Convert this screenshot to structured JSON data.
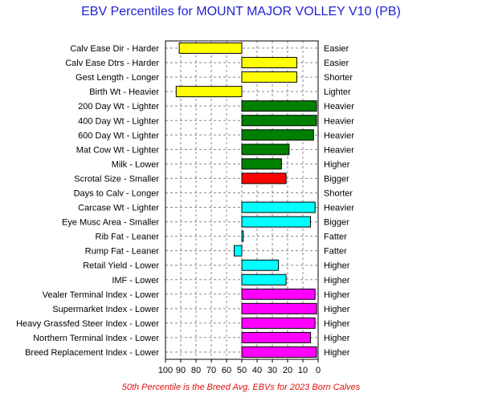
{
  "chart_data": {
    "type": "bar",
    "orientation": "horizontal",
    "title": "EBV Percentiles for MOUNT MAJOR VOLLEY V10 (PB)",
    "footnote": "50th Percentile is the Breed Avg. EBVs for 2023 Born Calves",
    "xlim": [
      100,
      0
    ],
    "x_ticks": [
      "100",
      "90",
      "80",
      "70",
      "60",
      "50",
      "40",
      "30",
      "20",
      "10",
      "0"
    ],
    "grid": true,
    "baseline": 50,
    "categories": [
      "Calv Ease Dir - Harder",
      "Calv Ease Dtrs - Harder",
      "Gest Length - Longer",
      "Birth Wt - Heavier",
      "200 Day Wt - Lighter",
      "400 Day Wt - Lighter",
      "600 Day Wt - Lighter",
      "Mat Cow Wt - Lighter",
      "Milk - Lower",
      "Scrotal Size - Smaller",
      "Days to Calv - Longer",
      "Carcase Wt - Lighter",
      "Eye Musc Area - Smaller",
      "Rib Fat - Leaner",
      "Rump Fat - Leaner",
      "Retail Yield - Lower",
      "IMF - Lower",
      "Vealer Terminal Index - Lower",
      "Supermarket Index - Lower",
      "Heavy Grassfed Steer Index - Lower",
      "Northern Terminal Index - Lower",
      "Breed Replacement Index - Lower"
    ],
    "right_labels": [
      "Easier",
      "Easier",
      "Shorter",
      "Lighter",
      "Heavier",
      "Heavier",
      "Heavier",
      "Heavier",
      "Higher",
      "Bigger",
      "Shorter",
      "Heavier",
      "Bigger",
      "Fatter",
      "Fatter",
      "Higher",
      "Higher",
      "Higher",
      "Higher",
      "Higher",
      "Higher",
      "Higher"
    ],
    "values": [
      91,
      14,
      14,
      93,
      1,
      1,
      3,
      19,
      24,
      21,
      null,
      2,
      5,
      49,
      55,
      26,
      21,
      2,
      1,
      2,
      5,
      1
    ],
    "colors": [
      "#ffff00",
      "#ffff00",
      "#ffff00",
      "#ffff00",
      "#008000",
      "#008000",
      "#008000",
      "#008000",
      "#008000",
      "#ff0000",
      null,
      "#00ffff",
      "#00ffff",
      "#00ffff",
      "#00ffff",
      "#00ffff",
      "#00ffff",
      "#ff00ff",
      "#ff00ff",
      "#ff00ff",
      "#ff00ff",
      "#ff00ff"
    ]
  }
}
